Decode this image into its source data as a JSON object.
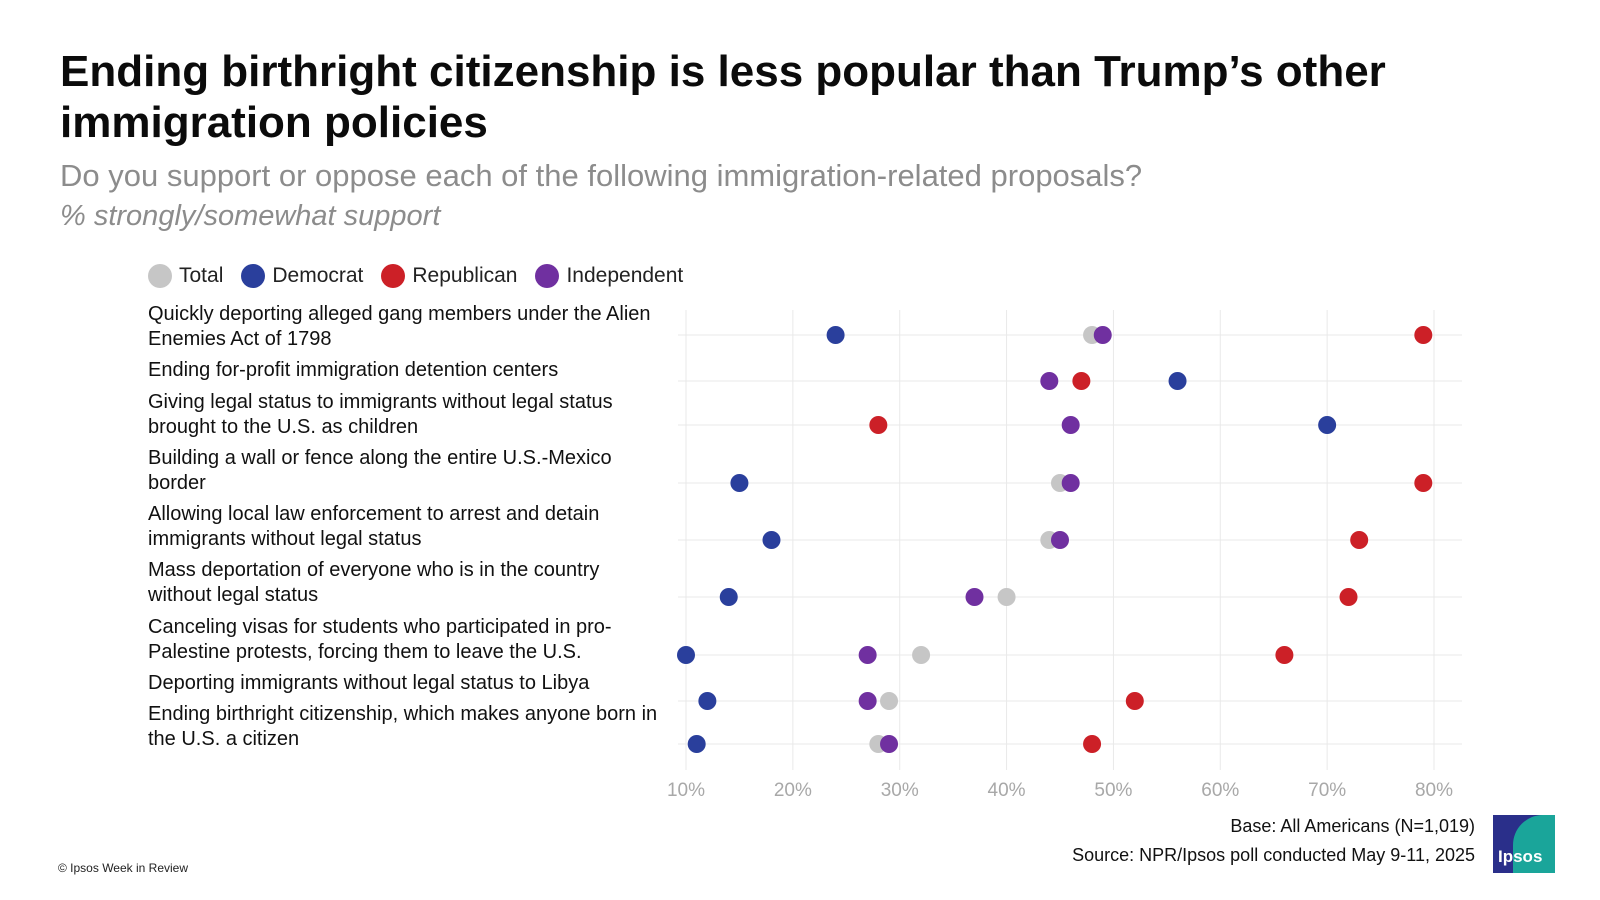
{
  "title": "Ending birthright citizenship is less popular than Trump’s other immigration policies",
  "subtitle": "Do you support or oppose each of the following immigration-related proposals?",
  "subtitle2": "% strongly/somewhat support",
  "base_note": "Base: All Americans (N=1,019)",
  "source_note": "Source: NPR/Ipsos poll conducted May 9-11, 2025",
  "copyright": "© Ipsos Week in Review",
  "logo_text": "Ipsos",
  "colors": {
    "Total": "#c6c6c6",
    "Democrat": "#2a3f9c",
    "Republican": "#cc2027",
    "Independent": "#7030a0",
    "grid": "#e9e9e9",
    "tick": "#a8a8a8"
  },
  "legend": [
    "Total",
    "Democrat",
    "Republican",
    "Independent"
  ],
  "chart_data": {
    "type": "scatter",
    "title": "Ending birthright citizenship is less popular than Trump’s other immigration policies",
    "subtitle": "Do you support or oppose each of the following immigration-related proposals?",
    "categories": [
      "Quickly deporting alleged gang members under the Alien Enemies Act of 1798",
      "Ending for-profit immigration detention centers",
      "Giving legal status to immigrants without legal status brought to the U.S. as children",
      "Building a wall or fence along the entire U.S.-Mexico border",
      "Allowing local law enforcement to arrest and detain immigrants without legal status",
      "Mass deportation of everyone who is in the country without legal status",
      "Canceling visas for students who participated in pro-Palestine protests, forcing them to leave the U.S.",
      "Deporting immigrants without legal status to Libya",
      "Ending birthright citizenship, which makes anyone born in the U.S. a citizen"
    ],
    "series": [
      {
        "name": "Total",
        "values": [
          48,
          null,
          null,
          45,
          44,
          40,
          32,
          29,
          28
        ]
      },
      {
        "name": "Democrat",
        "values": [
          24,
          56,
          70,
          15,
          18,
          14,
          10,
          12,
          11
        ]
      },
      {
        "name": "Republican",
        "values": [
          79,
          47,
          28,
          79,
          73,
          72,
          66,
          52,
          48
        ]
      },
      {
        "name": "Independent",
        "values": [
          49,
          44,
          46,
          46,
          45,
          37,
          27,
          27,
          29
        ]
      }
    ],
    "xlim": [
      10,
      80
    ],
    "xticks": [
      "10%",
      "20%",
      "30%",
      "40%",
      "50%",
      "60%",
      "70%",
      "80%"
    ],
    "grid": true,
    "legend": "top-left"
  }
}
